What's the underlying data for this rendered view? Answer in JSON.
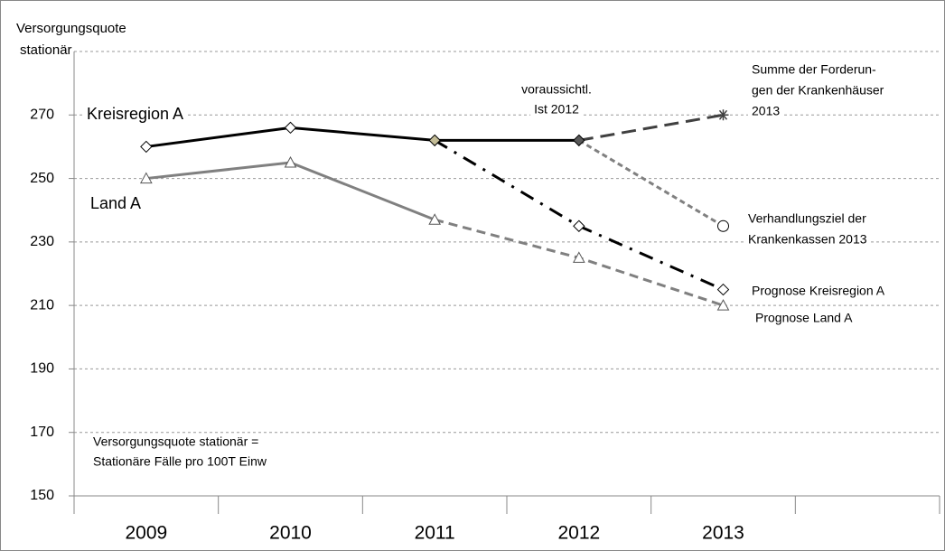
{
  "chart_data": {
    "type": "line",
    "ylabel": [
      "Versorgungsquote",
      "stationär"
    ],
    "categories": [
      "2009",
      "2010",
      "2011",
      "2012",
      "2013",
      null
    ],
    "ylim": [
      150,
      290
    ],
    "yticks": [
      150,
      170,
      190,
      210,
      230,
      250,
      270
    ],
    "grid": true,
    "series": [
      {
        "name": "Prognose Land A",
        "color": "#808080",
        "dash": "10 6",
        "marker": "triangle",
        "markers": "after-first",
        "values": [
          null,
          null,
          237,
          225,
          210,
          null
        ]
      },
      {
        "name": "Land A",
        "color": "#808080",
        "dash": "none",
        "marker": "triangle",
        "markers": "all",
        "values": [
          250,
          255,
          237,
          null,
          null,
          null
        ]
      },
      {
        "name": [
          "Verhandlungsziel der",
          "Krankenkassen 2013"
        ],
        "color": "#808080",
        "dash": "6 4",
        "marker": "circle",
        "markers": "after-first",
        "values": [
          null,
          null,
          null,
          262,
          235,
          null
        ]
      },
      {
        "name": [
          "Summe der Forderun-",
          "gen der Krankenhäuser",
          "2013"
        ],
        "color": "#404040",
        "dash": "16 8",
        "marker": "asterisk",
        "markers": "after-first",
        "values": [
          null,
          null,
          null,
          262,
          270,
          null
        ]
      },
      {
        "name": "Prognose Kreisregion A",
        "color": "#000000",
        "dash": "16 9 3 9",
        "marker": "diamond",
        "markers": "after-first",
        "values": [
          null,
          null,
          262,
          235,
          215,
          null
        ]
      },
      {
        "name": "Kreisregion A",
        "color": "#000000",
        "dash": "none",
        "marker": "diamond",
        "markers": "all",
        "marker_fills": [
          "#ffffff",
          "#ffffff",
          "#c4bd97",
          "#595959",
          null,
          null
        ],
        "values": [
          260,
          266,
          262,
          262,
          null,
          null
        ]
      }
    ],
    "annotations": [
      {
        "lines": [
          "voraussichtl.",
          "Ist 2012"
        ]
      },
      {
        "lines": [
          "Versorgungsquote stationär =",
          "Stationäre Fälle pro 100T Einw"
        ]
      }
    ]
  }
}
